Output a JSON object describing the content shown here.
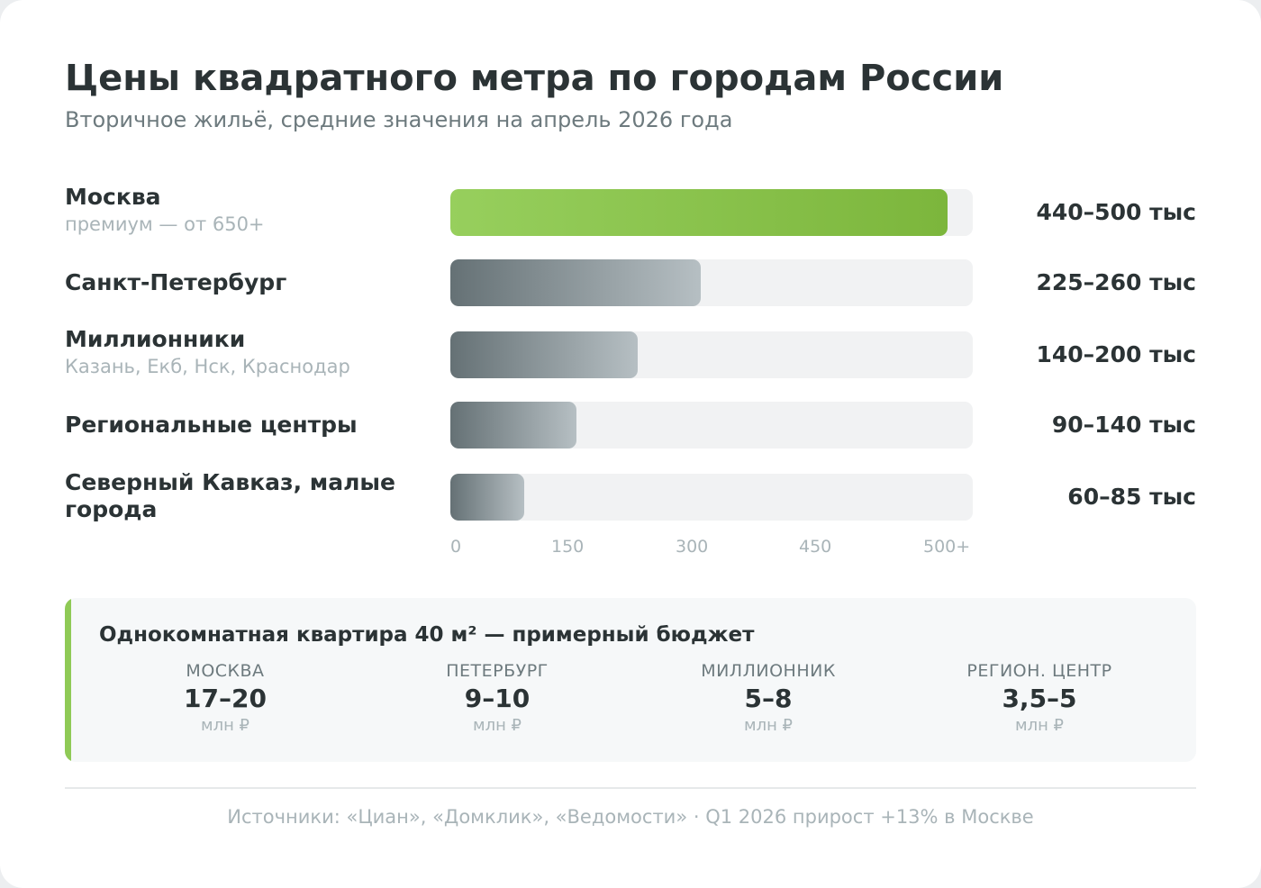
{
  "header": {
    "title": "Цены квадратного метра по городам России",
    "subtitle": "Вторичное жильё, средние значения на апрель 2026 года"
  },
  "chart_data": {
    "type": "bar",
    "orientation": "horizontal",
    "title": "Цены квадратного метра по городам России",
    "subtitle": "Вторичное жильё, средние значения на апрель 2026 года",
    "xlim": [
      0,
      500
    ],
    "x_ticks": [
      "0",
      "150",
      "300",
      "450",
      "500+"
    ],
    "grid": false,
    "categories": [
      {
        "label": "Москва",
        "sub": "премиум — от 650+",
        "value_label": "440–500 тыс",
        "low": 440,
        "high": 500,
        "bar_value": 476,
        "highlight": true
      },
      {
        "label": "Санкт-Петербург",
        "sub": "",
        "value_label": "225–260 тыс",
        "low": 225,
        "high": 260,
        "bar_value": 240,
        "highlight": false
      },
      {
        "label": "Миллионники",
        "sub": "Казань, Екб, Нск, Краснодар",
        "value_label": "140–200 тыс",
        "low": 140,
        "high": 200,
        "bar_value": 179,
        "highlight": false
      },
      {
        "label": "Региональные центры",
        "sub": "",
        "value_label": "90–140 тыс",
        "low": 90,
        "high": 140,
        "bar_value": 121,
        "highlight": false
      },
      {
        "label": "Северный Кавказ, малые города",
        "sub": "",
        "value_label": "60–85 тыс",
        "low": 60,
        "high": 85,
        "bar_value": 71,
        "highlight": false
      }
    ],
    "colors": {
      "highlight": "#8cc64f",
      "neutral_start": "#657175",
      "neutral_end": "#b6bfc3",
      "track": "#f1f2f3"
    }
  },
  "budget": {
    "title": "Однокомнатная квартира 40 м² — примерный бюджет",
    "columns": [
      {
        "label": "МОСКВА",
        "value": "17–20",
        "unit": "млн ₽"
      },
      {
        "label": "ПЕТЕРБУРГ",
        "value": "9–10",
        "unit": "млн ₽"
      },
      {
        "label": "МИЛЛИОННИК",
        "value": "5–8",
        "unit": "млн ₽"
      },
      {
        "label": "РЕГИОН. ЦЕНТР",
        "value": "3,5–5",
        "unit": "млн ₽"
      }
    ]
  },
  "footer": {
    "text": "Источники: «Циан», «Домклик», «Ведомости» · Q1 2026 прирост +13% в Москве"
  }
}
